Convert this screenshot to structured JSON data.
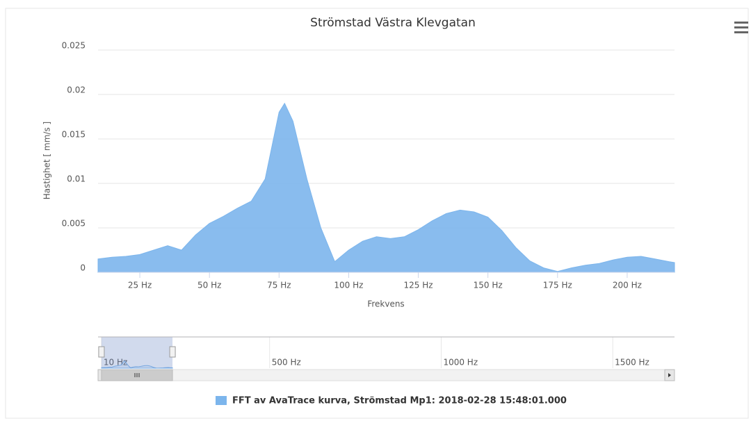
{
  "chart_data": {
    "type": "area",
    "title": "Strömstad Västra Klevgatan",
    "y_label": "Hastighet [ mm/s ]",
    "x_label": "Frekvens",
    "xlim": [
      10,
      217
    ],
    "xticks": [
      {
        "value": 25,
        "label": "25 Hz"
      },
      {
        "value": 50,
        "label": "50 Hz"
      },
      {
        "value": 75,
        "label": "75 Hz"
      },
      {
        "value": 100,
        "label": "100 Hz"
      },
      {
        "value": 125,
        "label": "125 Hz"
      },
      {
        "value": 150,
        "label": "150 Hz"
      },
      {
        "value": 175,
        "label": "175 Hz"
      },
      {
        "value": 200,
        "label": "200 Hz"
      }
    ],
    "ylim": [
      0,
      0.025
    ],
    "yticks": [
      0,
      0.005,
      0.01,
      0.015,
      0.02,
      0.025
    ],
    "grid": true,
    "navigator": {
      "xlim": [
        0,
        1680
      ],
      "xticks": [
        {
          "value": 10,
          "label": "10 Hz"
        },
        {
          "value": 500,
          "label": "500 Hz"
        },
        {
          "value": 1000,
          "label": "1000 Hz"
        },
        {
          "value": 1500,
          "label": "1500 Hz"
        }
      ]
    },
    "x": [
      10,
      15,
      20,
      25,
      30,
      35,
      40,
      45,
      50,
      55,
      60,
      65,
      70,
      75,
      77,
      80,
      85,
      90,
      95,
      100,
      105,
      110,
      115,
      120,
      125,
      130,
      135,
      140,
      145,
      150,
      155,
      160,
      165,
      170,
      175,
      180,
      185,
      190,
      195,
      200,
      205,
      210,
      215,
      217
    ],
    "series": [
      {
        "name": "FFT av AvaTrace kurva, Strömstad Mp1: 2018-02-28 15:48:01.000",
        "color": "#7cb5ec",
        "values": [
          0.0015,
          0.0017,
          0.0018,
          0.002,
          0.0025,
          0.003,
          0.0025,
          0.0042,
          0.0055,
          0.0063,
          0.0072,
          0.008,
          0.0105,
          0.018,
          0.019,
          0.017,
          0.0105,
          0.005,
          0.0012,
          0.0025,
          0.0035,
          0.004,
          0.0038,
          0.004,
          0.0048,
          0.0058,
          0.0066,
          0.007,
          0.0068,
          0.0062,
          0.0047,
          0.0028,
          0.0013,
          0.0005,
          0.0001,
          0.0005,
          0.0008,
          0.001,
          0.0014,
          0.0017,
          0.0018,
          0.0015,
          0.0012,
          0.0011
        ]
      }
    ]
  }
}
